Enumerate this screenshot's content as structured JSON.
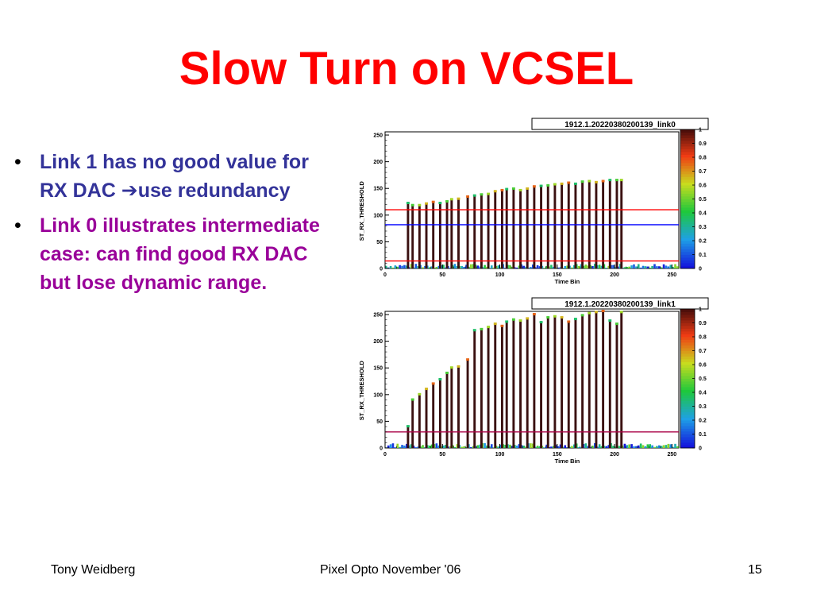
{
  "slide": {
    "title": "Slow Turn on VCSEL",
    "bullets": [
      {
        "before": "Link 1 has no good value for RX DAC ",
        "arrow": "➔",
        "after": "use redundancy",
        "color": "#333399"
      },
      {
        "before": "Link 0 illustrates intermediate case: can find good RX DAC but lose dynamic range.",
        "arrow": "",
        "after": "",
        "color": "#990099"
      }
    ],
    "bullet_mark": "•"
  },
  "footer": {
    "left": "Tony Weidberg",
    "center": "Pixel Opto November '06",
    "right": "15"
  },
  "chart_data": [
    {
      "type": "bar",
      "title": "1912.1.20220380200139_link0",
      "xlabel": "Time Bin",
      "ylabel": "ST_RX_THRESHOLD",
      "xlim": [
        0,
        256
      ],
      "ylim": [
        0,
        256
      ],
      "xticks": [
        0,
        50,
        100,
        150,
        200,
        250
      ],
      "yticks": [
        0,
        50,
        100,
        150,
        200,
        250
      ],
      "zlim": [
        0,
        1
      ],
      "zticks": [
        "0",
        "0.1",
        "0.2",
        "0.3",
        "0.4",
        "0.5",
        "0.6",
        "0.7",
        "0.8",
        "0.9",
        "1"
      ],
      "lines": [
        {
          "y": 110,
          "color": "#ff0000"
        },
        {
          "y": 82,
          "color": "#0000ff"
        },
        {
          "y": 14,
          "color": "#ff0000"
        }
      ],
      "x": [
        20,
        24,
        30,
        36,
        42,
        48,
        54,
        58,
        64,
        72,
        78,
        84,
        90,
        96,
        102,
        106,
        112,
        118,
        124,
        130,
        136,
        142,
        148,
        154,
        160,
        166,
        172,
        178,
        184,
        190,
        196,
        202,
        206
      ],
      "values": [
        122,
        118,
        118,
        121,
        124,
        122,
        125,
        129,
        130,
        134,
        136,
        138,
        139,
        144,
        146,
        148,
        149,
        146,
        149,
        153,
        154,
        155,
        157,
        158,
        160,
        158,
        162,
        163,
        161,
        163,
        165,
        165,
        165
      ]
    },
    {
      "type": "bar",
      "title": "1912.1.20220380200139_link1",
      "xlabel": "Time Bin",
      "ylabel": "ST_RX_THRESHOLD",
      "xlim": [
        0,
        256
      ],
      "ylim": [
        0,
        256
      ],
      "xticks": [
        0,
        50,
        100,
        150,
        200,
        250
      ],
      "yticks": [
        0,
        50,
        100,
        150,
        200,
        250
      ],
      "zlim": [
        0,
        1
      ],
      "zticks": [
        "0",
        "0.1",
        "0.2",
        "0.3",
        "0.4",
        "0.5",
        "0.6",
        "0.7",
        "0.8",
        "0.9",
        "1"
      ],
      "lines": [
        {
          "y": 30,
          "color": "#aa0044"
        }
      ],
      "x": [
        20,
        24,
        30,
        36,
        42,
        48,
        54,
        58,
        64,
        72,
        78,
        84,
        90,
        96,
        102,
        106,
        112,
        118,
        124,
        130,
        136,
        142,
        148,
        154,
        160,
        166,
        172,
        178,
        184,
        190,
        196,
        202,
        206
      ],
      "values": [
        40,
        90,
        100,
        110,
        120,
        128,
        140,
        150,
        152,
        165,
        220,
        222,
        226,
        232,
        228,
        236,
        240,
        238,
        242,
        250,
        235,
        244,
        246,
        244,
        236,
        241,
        248,
        252,
        254,
        256,
        238,
        232,
        254
      ]
    }
  ]
}
